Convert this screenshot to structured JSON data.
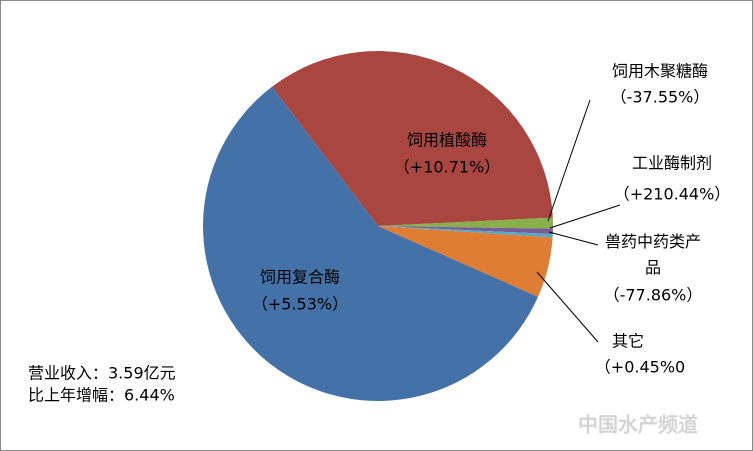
{
  "chart_data": {
    "type": "pie",
    "categories": [
      "饲用植酸酶",
      "饲用木聚糖酶",
      "工业酶制剂",
      "兽药中药类产品",
      "其它",
      "饲用复合酶"
    ],
    "values": [
      34.6,
      1.0,
      0.5,
      0.3,
      5.6,
      58.0
    ],
    "colors": [
      "#a9463f",
      "#87b04b",
      "#7a5b9a",
      "#4bacc6",
      "#e07d35",
      "#4472a8"
    ],
    "growth_labels": [
      "（+10.71%）",
      "（-37.55%）",
      "（+210.44%）",
      "（-77.86%）",
      "（+0.45%0",
      "（+5.53%）"
    ],
    "notes": [
      "营业收入：3.59亿元",
      "比上年增幅：6.44%"
    ],
    "watermark": "中国水产频道"
  }
}
